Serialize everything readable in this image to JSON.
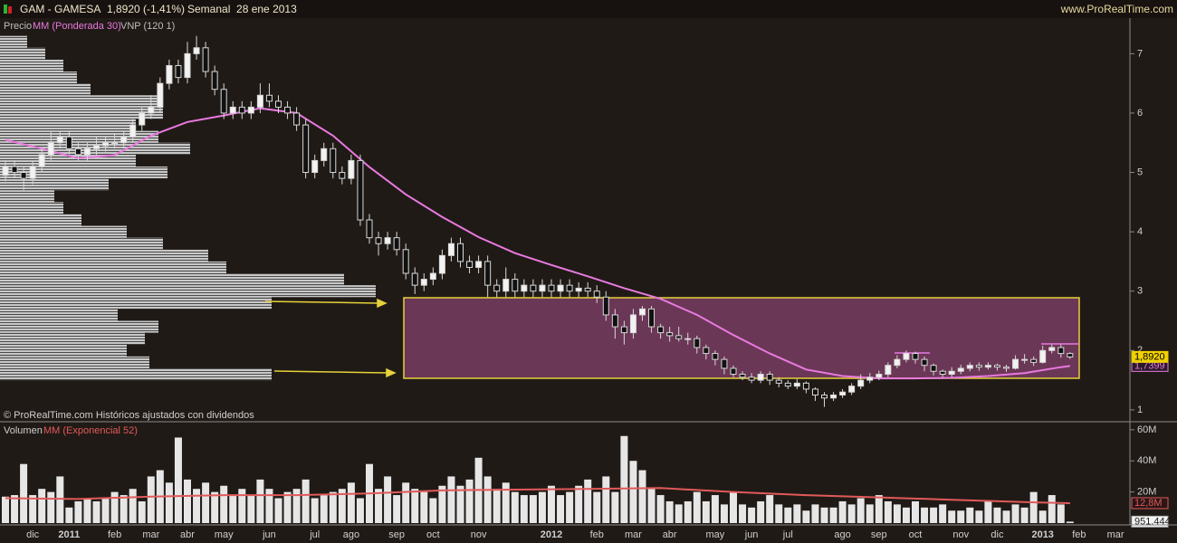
{
  "header": {
    "symbol": "GAM - GAMESA",
    "quote": "1,8920 (-1,41%)",
    "period": "Semanal  28 ene 2013",
    "site": "www.ProRealTime.com"
  },
  "chart_data": [
    {
      "type": "candlestick",
      "name": "Precio",
      "note": "© ProRealTime.com Históricos ajustados con dividendos",
      "categories": [
        null,
        null,
        null,
        "dic",
        null,
        null,
        null,
        "2011",
        null,
        null,
        null,
        null,
        "feb",
        null,
        null,
        null,
        "mar",
        null,
        null,
        null,
        "abr",
        null,
        null,
        null,
        "may",
        null,
        null,
        null,
        null,
        "jun",
        null,
        null,
        null,
        null,
        "jul",
        null,
        null,
        null,
        "ago",
        null,
        null,
        null,
        null,
        "sep",
        null,
        null,
        null,
        "oct",
        null,
        null,
        null,
        null,
        "nov",
        null,
        null,
        null,
        null,
        null,
        null,
        null,
        "2012",
        null,
        null,
        null,
        null,
        "feb",
        null,
        null,
        null,
        "mar",
        null,
        null,
        null,
        "abr",
        null,
        null,
        null,
        null,
        "may",
        null,
        null,
        null,
        "jun",
        null,
        null,
        null,
        "jul",
        null,
        null,
        null,
        null,
        null,
        "ago",
        null,
        null,
        null,
        "sep",
        null,
        null,
        null,
        "oct",
        null,
        null,
        null,
        null,
        "nov",
        null,
        null,
        null,
        "dic",
        null,
        null,
        null,
        null,
        "2013",
        null,
        null,
        null,
        "feb",
        null,
        null,
        null,
        "mar",
        null
      ],
      "open": [
        4.95,
        5.1,
        5.0,
        4.9,
        5.1,
        5.3,
        5.5,
        5.6,
        5.4,
        5.3,
        5.4,
        5.45,
        5.5,
        5.5,
        5.6,
        5.8,
        6.0,
        6.1,
        6.5,
        6.8,
        6.6,
        7.0,
        7.1,
        6.7,
        6.4,
        6.0,
        6.1,
        6.0,
        6.1,
        6.3,
        6.2,
        6.1,
        6.0,
        5.8,
        5.0,
        5.2,
        5.4,
        5.0,
        4.9,
        5.2,
        4.2,
        3.9,
        3.8,
        3.9,
        3.7,
        3.3,
        3.1,
        3.2,
        3.3,
        3.6,
        3.8,
        3.5,
        3.4,
        3.5,
        3.1,
        3.0,
        3.2,
        3.0,
        3.1,
        3.0,
        3.1,
        3.0,
        3.1,
        3.0,
        3.05,
        3.0,
        2.9,
        2.6,
        2.4,
        2.3,
        2.6,
        2.7,
        2.4,
        2.3,
        2.25,
        2.2,
        2.2,
        2.05,
        1.95,
        1.85,
        1.7,
        1.6,
        1.55,
        1.5,
        1.6,
        1.5,
        1.45,
        1.4,
        1.45,
        1.35,
        1.25,
        1.2,
        1.25,
        1.3,
        1.4,
        1.5,
        1.55,
        1.6,
        1.75,
        1.85,
        1.95,
        1.85,
        1.75,
        1.65,
        1.6,
        1.65,
        1.7,
        1.75,
        1.72,
        1.75,
        1.72,
        1.7,
        1.85,
        1.85,
        1.8,
        2.0,
        2.05,
        1.95,
        null,
        null,
        null,
        null,
        null,
        null
      ],
      "high": [
        5.2,
        5.2,
        5.1,
        5.2,
        5.4,
        5.7,
        5.7,
        5.7,
        5.5,
        5.5,
        5.6,
        5.6,
        5.65,
        5.7,
        5.9,
        6.1,
        6.3,
        6.6,
        6.9,
        6.9,
        7.2,
        7.3,
        7.2,
        6.8,
        6.5,
        6.2,
        6.2,
        6.2,
        6.5,
        6.5,
        6.3,
        6.2,
        6.1,
        5.9,
        5.3,
        5.5,
        5.5,
        5.1,
        5.3,
        5.3,
        4.3,
        4.0,
        4.0,
        4.0,
        3.8,
        3.4,
        3.3,
        3.4,
        3.7,
        3.9,
        3.9,
        3.6,
        3.6,
        3.6,
        3.2,
        3.4,
        3.3,
        3.2,
        3.2,
        3.2,
        3.2,
        3.2,
        3.2,
        3.15,
        3.15,
        3.1,
        3.0,
        2.7,
        2.5,
        2.7,
        2.75,
        2.75,
        2.45,
        2.4,
        2.4,
        2.3,
        2.25,
        2.1,
        2.0,
        1.9,
        1.75,
        1.65,
        1.62,
        1.65,
        1.65,
        1.55,
        1.5,
        1.52,
        1.48,
        1.38,
        1.3,
        1.3,
        1.35,
        1.45,
        1.6,
        1.62,
        1.66,
        1.8,
        1.92,
        2.0,
        1.98,
        1.9,
        1.78,
        1.68,
        1.72,
        1.76,
        1.8,
        1.8,
        1.8,
        1.78,
        1.76,
        1.92,
        1.94,
        1.9,
        2.08,
        2.1,
        2.1,
        1.97,
        null,
        null,
        null,
        null,
        null,
        null
      ],
      "low": [
        4.85,
        4.9,
        4.7,
        4.8,
        5.0,
        5.2,
        5.4,
        5.3,
        5.2,
        5.2,
        5.3,
        5.35,
        5.4,
        5.4,
        5.5,
        5.7,
        5.9,
        6.0,
        6.4,
        6.5,
        6.5,
        6.9,
        6.6,
        6.3,
        5.9,
        5.9,
        5.9,
        5.9,
        6.0,
        6.1,
        6.0,
        5.9,
        5.7,
        4.9,
        4.9,
        5.1,
        4.9,
        4.8,
        4.8,
        4.1,
        3.8,
        3.6,
        3.7,
        3.6,
        3.2,
        2.95,
        3.0,
        3.1,
        3.2,
        3.5,
        3.4,
        3.3,
        3.3,
        2.9,
        2.9,
        2.9,
        2.9,
        2.9,
        2.9,
        2.9,
        2.9,
        2.9,
        2.9,
        2.9,
        2.9,
        2.8,
        2.5,
        2.2,
        2.1,
        2.2,
        2.5,
        2.3,
        2.2,
        2.15,
        2.15,
        2.1,
        1.95,
        1.85,
        1.75,
        1.6,
        1.55,
        1.5,
        1.45,
        1.45,
        1.42,
        1.38,
        1.35,
        1.35,
        1.28,
        1.15,
        1.05,
        1.15,
        1.2,
        1.25,
        1.35,
        1.45,
        1.5,
        1.55,
        1.7,
        1.8,
        1.78,
        1.65,
        1.58,
        1.55,
        1.55,
        1.6,
        1.65,
        1.66,
        1.68,
        1.66,
        1.64,
        1.68,
        1.78,
        1.74,
        1.78,
        1.95,
        1.88,
        1.86,
        null,
        null,
        null,
        null,
        null,
        null
      ],
      "close": [
        5.1,
        5.0,
        4.9,
        5.1,
        5.3,
        5.5,
        5.6,
        5.4,
        5.3,
        5.4,
        5.45,
        5.5,
        5.5,
        5.6,
        5.8,
        6.0,
        6.1,
        6.5,
        6.8,
        6.6,
        7.0,
        7.1,
        6.7,
        6.4,
        6.0,
        6.1,
        6.0,
        6.1,
        6.3,
        6.2,
        6.1,
        6.0,
        5.8,
        5.0,
        5.2,
        5.4,
        5.0,
        4.9,
        5.2,
        4.2,
        3.9,
        3.8,
        3.9,
        3.7,
        3.3,
        3.1,
        3.2,
        3.3,
        3.6,
        3.8,
        3.5,
        3.4,
        3.5,
        3.1,
        3.0,
        3.2,
        3.0,
        3.1,
        3.0,
        3.1,
        3.0,
        3.1,
        3.0,
        3.05,
        3.0,
        2.9,
        2.6,
        2.4,
        2.3,
        2.6,
        2.7,
        2.4,
        2.3,
        2.25,
        2.2,
        2.2,
        2.05,
        1.95,
        1.85,
        1.7,
        1.6,
        1.55,
        1.5,
        1.6,
        1.5,
        1.45,
        1.4,
        1.45,
        1.35,
        1.25,
        1.2,
        1.25,
        1.3,
        1.4,
        1.5,
        1.55,
        1.6,
        1.75,
        1.85,
        1.95,
        1.85,
        1.75,
        1.65,
        1.6,
        1.65,
        1.7,
        1.75,
        1.72,
        1.75,
        1.72,
        1.7,
        1.85,
        1.85,
        1.8,
        2.0,
        2.05,
        1.95,
        1.892,
        null,
        null,
        null,
        null,
        null,
        null
      ],
      "ylim": [
        0.8,
        7.6
      ],
      "yticks": [
        1,
        2,
        3,
        4,
        5,
        6,
        7
      ],
      "moving_average": {
        "name": "MM (Ponderada 30)",
        "color": "#e879e0",
        "x": [
          0,
          4,
          8,
          12,
          16,
          20,
          24,
          28,
          32,
          36,
          40,
          44,
          48,
          52,
          56,
          60,
          64,
          68,
          72,
          76,
          80,
          84,
          88,
          92,
          96,
          100,
          104,
          108,
          112,
          116,
          117
        ],
        "values": [
          5.55,
          5.4,
          5.24,
          5.29,
          5.62,
          5.85,
          5.96,
          6.08,
          6.0,
          5.62,
          5.09,
          4.63,
          4.25,
          3.91,
          3.64,
          3.44,
          3.25,
          3.05,
          2.87,
          2.6,
          2.26,
          1.95,
          1.68,
          1.57,
          1.53,
          1.53,
          1.54,
          1.57,
          1.62,
          1.72,
          1.7399
        ]
      },
      "volume_profile": {
        "name": "VNP (120 1)",
        "bins": [
          1.5,
          1.7,
          1.9,
          2.1,
          2.3,
          2.5,
          2.7,
          2.9,
          3.1,
          3.3,
          3.5,
          3.7,
          3.9,
          4.1,
          4.3,
          4.5,
          4.7,
          4.9,
          5.1,
          5.3,
          5.5,
          5.7,
          5.9,
          6.1,
          6.3,
          6.5,
          6.7,
          6.9,
          7.1,
          7.3
        ],
        "values": [
          300,
          165,
          140,
          160,
          175,
          130,
          300,
          415,
          380,
          250,
          230,
          180,
          140,
          90,
          70,
          60,
          120,
          185,
          150,
          210,
          175,
          150,
          180,
          175,
          100,
          85,
          70,
          50,
          30
        ]
      },
      "last_tag": {
        "value": 1.892,
        "label": "1,8920"
      },
      "ma_tag": {
        "value": 1.7399,
        "label": "1,7399"
      }
    },
    {
      "type": "bar",
      "title": "Volumen",
      "color": "#e6e6e6",
      "values": [
        17,
        18,
        38,
        18,
        22,
        20,
        30,
        10,
        14,
        16,
        14,
        16,
        20,
        18,
        22,
        14,
        30,
        34,
        26,
        55,
        28,
        22,
        26,
        20,
        24,
        18,
        22,
        18,
        28,
        22,
        16,
        20,
        22,
        28,
        16,
        18,
        20,
        22,
        26,
        16,
        38,
        22,
        30,
        18,
        26,
        22,
        20,
        16,
        24,
        30,
        24,
        28,
        42,
        30,
        22,
        26,
        20,
        18,
        18,
        20,
        24,
        18,
        20,
        24,
        28,
        20,
        30,
        20,
        56,
        40,
        34,
        22,
        18,
        14,
        12,
        14,
        20,
        14,
        18,
        12,
        20,
        12,
        10,
        14,
        18,
        12,
        10,
        12,
        8,
        12,
        10,
        10,
        14,
        12,
        16,
        12,
        18,
        14,
        12,
        10,
        14,
        10,
        10,
        12,
        8,
        8,
        10,
        8,
        14,
        10,
        8,
        12,
        10,
        20,
        8,
        18,
        12,
        0.951444,
        null,
        null,
        null,
        null,
        null,
        null
      ],
      "ylim": [
        0,
        64
      ],
      "yticks": [
        {
          "value": 60,
          "label": "60M"
        },
        {
          "value": 40,
          "label": "40M"
        },
        {
          "value": 20,
          "label": "20M"
        }
      ],
      "moving_average": {
        "name": "MM (Exponencial 52)",
        "color": "#e05a5a",
        "x": [
          0,
          8,
          16,
          24,
          32,
          40,
          48,
          56,
          64,
          72,
          80,
          88,
          96,
          104,
          112,
          117
        ],
        "values": [
          16,
          15.5,
          17,
          18,
          18,
          19,
          21,
          21.5,
          22,
          22.5,
          20,
          18,
          16.5,
          15,
          13.5,
          12.8
        ]
      },
      "ma_tag": {
        "value": 12.8,
        "label": "12,8M"
      },
      "last_tag": {
        "value": 0.951444,
        "label": "951.444"
      }
    }
  ]
}
